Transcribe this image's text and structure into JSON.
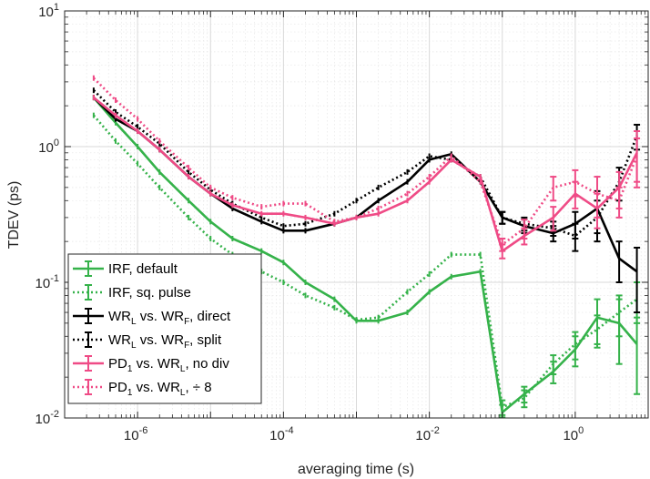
{
  "chart_data": {
    "type": "line",
    "xlabel": "averaging time (s)",
    "ylabel": "TDEV (ps)",
    "xscale": "log",
    "yscale": "log",
    "xlim": [
      1e-07,
      10
    ],
    "ylim": [
      0.01,
      10
    ],
    "grid": true,
    "x_ticks": [
      {
        "value": 1e-06,
        "base": "10",
        "exp": "-6"
      },
      {
        "value": 0.0001,
        "base": "10",
        "exp": "-4"
      },
      {
        "value": 0.01,
        "base": "10",
        "exp": "-2"
      },
      {
        "value": 1,
        "base": "10",
        "exp": "0"
      }
    ],
    "y_ticks": [
      {
        "value": 0.01,
        "base": "10",
        "exp": "-2"
      },
      {
        "value": 0.1,
        "base": "10",
        "exp": "-1"
      },
      {
        "value": 1,
        "base": "10",
        "exp": "0"
      },
      {
        "value": 10,
        "base": "10",
        "exp": "1"
      }
    ],
    "legend_position": "bottom-left",
    "series": [
      {
        "name": "IRF, default",
        "legend": {
          "base": "IRF, default",
          "sub": "",
          "rest": ""
        },
        "color": "#35b24a",
        "style": "solid",
        "x": [
          2.5e-07,
          5e-07,
          1e-06,
          2e-06,
          5e-06,
          1e-05,
          2e-05,
          5e-05,
          0.0001,
          0.0002,
          0.0005,
          0.001,
          0.002,
          0.005,
          0.01,
          0.02,
          0.05,
          0.1,
          0.2,
          0.5,
          1,
          2,
          4,
          7
        ],
        "y": [
          2.3,
          1.5,
          1.0,
          0.65,
          0.4,
          0.28,
          0.21,
          0.17,
          0.14,
          0.1,
          0.075,
          0.052,
          0.052,
          0.06,
          0.085,
          0.11,
          0.12,
          0.011,
          0.015,
          0.022,
          0.032,
          0.055,
          0.05,
          0.035
        ],
        "err": [
          0,
          0,
          0,
          0,
          0,
          0,
          0,
          0,
          0,
          0,
          0,
          0,
          0,
          0,
          0,
          0,
          0,
          0.0015,
          0.002,
          0.004,
          0.008,
          0.02,
          0.025,
          0.02
        ]
      },
      {
        "name": "IRF, sq. pulse",
        "legend": {
          "base": "IRF, sq. pulse",
          "sub": "",
          "rest": ""
        },
        "color": "#35b24a",
        "style": "dotted",
        "x": [
          2.5e-07,
          5e-07,
          1e-06,
          2e-06,
          5e-06,
          1e-05,
          2e-05,
          5e-05,
          0.0001,
          0.0002,
          0.0005,
          0.001,
          0.002,
          0.005,
          0.01,
          0.02,
          0.05,
          0.1,
          0.2,
          0.5,
          1,
          2,
          4,
          7
        ],
        "y": [
          1.7,
          1.1,
          0.75,
          0.5,
          0.3,
          0.21,
          0.16,
          0.12,
          0.1,
          0.08,
          0.065,
          0.053,
          0.055,
          0.085,
          0.115,
          0.16,
          0.16,
          0.012,
          0.014,
          0.025,
          0.035,
          0.045,
          0.06,
          0.075
        ],
        "err": [
          0,
          0,
          0,
          0,
          0,
          0,
          0,
          0,
          0,
          0,
          0,
          0,
          0,
          0,
          0,
          0,
          0,
          0.0015,
          0.002,
          0.004,
          0.008,
          0.012,
          0.02,
          0.025
        ]
      },
      {
        "name": "WR_L vs. WR_F, direct",
        "legend": {
          "base": "WR",
          "sub": "L",
          "rest": " vs. WR",
          "sub2": "F",
          "rest2": ", direct"
        },
        "color": "#000000",
        "style": "solid",
        "x": [
          2.5e-07,
          5e-07,
          1e-06,
          2e-06,
          5e-06,
          1e-05,
          2e-05,
          5e-05,
          0.0001,
          0.0002,
          0.0005,
          0.001,
          0.002,
          0.005,
          0.01,
          0.02,
          0.05,
          0.1,
          0.2,
          0.5,
          1,
          2,
          4,
          7
        ],
        "y": [
          2.3,
          1.6,
          1.3,
          0.95,
          0.6,
          0.45,
          0.35,
          0.28,
          0.24,
          0.24,
          0.27,
          0.3,
          0.4,
          0.55,
          0.8,
          0.88,
          0.55,
          0.3,
          0.26,
          0.23,
          0.27,
          0.35,
          0.15,
          0.12
        ],
        "err": [
          0,
          0,
          0,
          0,
          0,
          0,
          0,
          0,
          0,
          0,
          0,
          0,
          0,
          0,
          0,
          0,
          0,
          0.03,
          0.03,
          0.03,
          0.06,
          0.12,
          0.05,
          0.06
        ]
      },
      {
        "name": "WR_L vs. WR_F, split",
        "legend": {
          "base": "WR",
          "sub": "L",
          "rest": " vs. WR",
          "sub2": "F",
          "rest2": ", split"
        },
        "color": "#000000",
        "style": "dotted",
        "x": [
          2.5e-07,
          5e-07,
          1e-06,
          2e-06,
          5e-06,
          1e-05,
          2e-05,
          5e-05,
          0.0001,
          0.0002,
          0.0005,
          0.001,
          0.002,
          0.005,
          0.01,
          0.02,
          0.05,
          0.1,
          0.2,
          0.5,
          1,
          2,
          4,
          7
        ],
        "y": [
          2.6,
          1.8,
          1.4,
          1.05,
          0.65,
          0.48,
          0.38,
          0.3,
          0.26,
          0.27,
          0.32,
          0.4,
          0.5,
          0.65,
          0.85,
          0.8,
          0.6,
          0.3,
          0.27,
          0.25,
          0.22,
          0.3,
          0.55,
          1.2
        ],
        "err": [
          0,
          0,
          0,
          0,
          0,
          0,
          0,
          0,
          0,
          0,
          0,
          0,
          0,
          0,
          0,
          0,
          0,
          0.03,
          0.03,
          0.03,
          0.05,
          0.1,
          0.15,
          0.25
        ]
      },
      {
        "name": "PD_1 vs. WR_L, no div",
        "legend": {
          "base": "PD",
          "sub": "1",
          "rest": " vs. WR",
          "sub2": "L",
          "rest2": ", no div"
        },
        "color": "#ef4b86",
        "style": "solid",
        "x": [
          2.5e-07,
          5e-07,
          1e-06,
          2e-06,
          5e-06,
          1e-05,
          2e-05,
          5e-05,
          0.0001,
          0.0002,
          0.0005,
          0.001,
          0.002,
          0.005,
          0.01,
          0.02,
          0.05,
          0.1,
          0.2,
          0.5,
          1,
          2,
          4,
          7
        ],
        "y": [
          2.3,
          1.7,
          1.3,
          0.95,
          0.6,
          0.45,
          0.37,
          0.32,
          0.32,
          0.3,
          0.27,
          0.3,
          0.32,
          0.4,
          0.55,
          0.8,
          0.6,
          0.17,
          0.22,
          0.3,
          0.45,
          0.35,
          0.5,
          0.9
        ],
        "err": [
          0,
          0,
          0,
          0,
          0,
          0,
          0,
          0,
          0,
          0,
          0,
          0,
          0,
          0,
          0,
          0,
          0,
          0.02,
          0.03,
          0.06,
          0.1,
          0.1,
          0.15,
          0.4
        ]
      },
      {
        "name": "PD_1 vs. WR_L, ÷ 8",
        "legend": {
          "base": "PD",
          "sub": "1",
          "rest": " vs. WR",
          "sub2": "L",
          "rest2": ", ÷ 8"
        },
        "color": "#ef4b86",
        "style": "dotted",
        "x": [
          2.5e-07,
          5e-07,
          1e-06,
          2e-06,
          5e-06,
          1e-05,
          2e-05,
          5e-05,
          0.0001,
          0.0002,
          0.0005,
          0.001,
          0.002,
          0.005,
          0.01,
          0.02,
          0.05,
          0.1,
          0.2,
          0.5,
          1,
          2,
          4,
          7
        ],
        "y": [
          3.2,
          2.2,
          1.6,
          1.1,
          0.7,
          0.5,
          0.42,
          0.36,
          0.38,
          0.38,
          0.28,
          0.3,
          0.35,
          0.45,
          0.6,
          0.85,
          0.55,
          0.19,
          0.25,
          0.5,
          0.55,
          0.45,
          0.4,
          0.85
        ],
        "err": [
          0,
          0,
          0,
          0,
          0,
          0,
          0,
          0,
          0,
          0,
          0,
          0,
          0,
          0,
          0,
          0,
          0,
          0.02,
          0.04,
          0.1,
          0.12,
          0.15,
          0.1,
          0.3
        ]
      }
    ]
  }
}
